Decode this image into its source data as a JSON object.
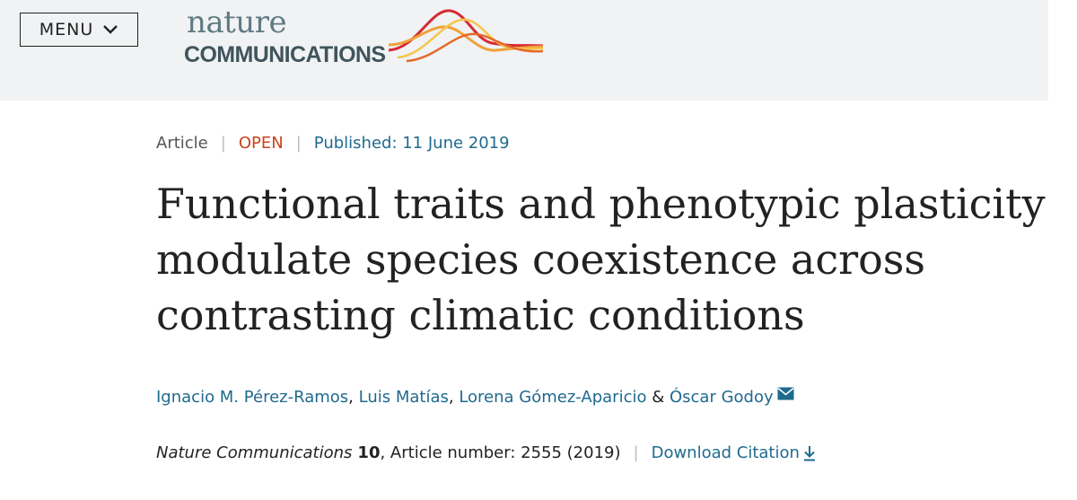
{
  "header": {
    "menu_label": "MENU",
    "logo": {
      "line1": "nature",
      "line2": "COMMUNICATIONS"
    }
  },
  "article": {
    "type": "Article",
    "access": "OPEN",
    "published": "Published: 11 June 2019",
    "title": "Functional traits and phenotypic plasticity modulate species coexistence across contrasting climatic conditions",
    "authors": [
      "Ignacio M. Pérez-Ramos",
      "Luis Matías",
      "Lorena Gómez-Aparicio",
      "Óscar Godoy"
    ],
    "author_separators": [
      ", ",
      ", ",
      " & "
    ],
    "journal": "Nature Communications",
    "volume": "10",
    "article_info": ", Article number: 2555 (2019)",
    "download_citation": "Download Citation"
  },
  "colors": {
    "link": "#1f6a8e",
    "open": "#c8441a",
    "header_bg": "#f0f2f4"
  },
  "icons": [
    "chevron-down-icon",
    "mail-icon",
    "download-icon"
  ]
}
